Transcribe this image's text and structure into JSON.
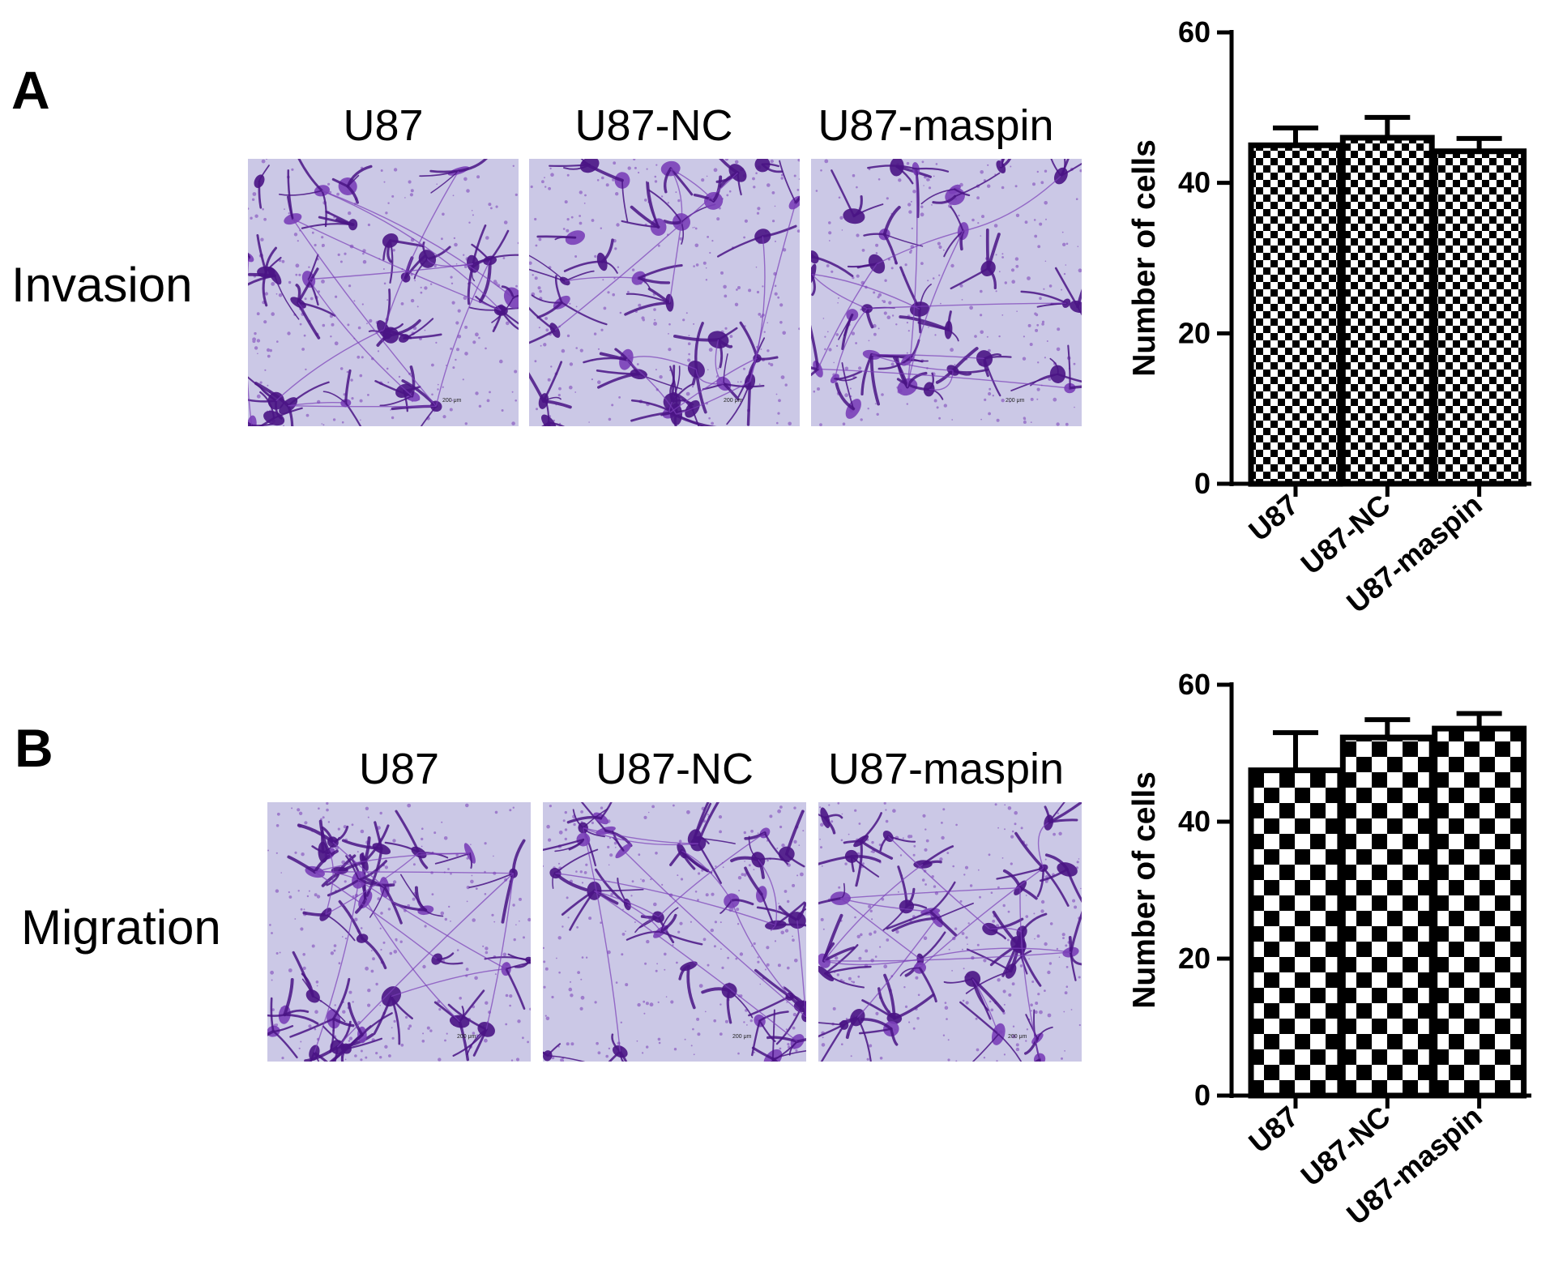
{
  "figure": {
    "panels": [
      {
        "letter": "A",
        "row_label": "Invasion",
        "columns": [
          "U87",
          "U87-NC",
          "U87-maspin"
        ],
        "scale_bar": "200 μm"
      },
      {
        "letter": "B",
        "row_label": "Migration",
        "columns": [
          "U87",
          "U87-NC",
          "U87-maspin"
        ],
        "scale_bar": "200 μm"
      }
    ]
  },
  "colors": {
    "stain_dark": "#4a1485",
    "stain_mid": "#7a3fb8",
    "background_light": "#cbc8e6",
    "bar_outline": "#000000"
  },
  "chart_data": [
    {
      "type": "bar",
      "panel": "A",
      "categories": [
        "U87",
        "U87-NC",
        "U87-maspin"
      ],
      "values": [
        45,
        46,
        44.2
      ],
      "errors": [
        2.3,
        2.7,
        1.7
      ],
      "ylabel": "Number of cells",
      "ylim": [
        0,
        60
      ],
      "yticks": [
        0,
        20,
        40,
        60
      ],
      "pattern": "fine-checkerboard"
    },
    {
      "type": "bar",
      "panel": "B",
      "categories": [
        "U87",
        "U87-NC",
        "U87-maspin"
      ],
      "values": [
        47.5,
        52.3,
        53.6
      ],
      "errors": [
        5.5,
        2.6,
        2.2
      ],
      "ylabel": "Number of cells",
      "ylim": [
        0,
        60
      ],
      "yticks": [
        0,
        20,
        40,
        60
      ],
      "pattern": "coarse-checkerboard"
    }
  ]
}
